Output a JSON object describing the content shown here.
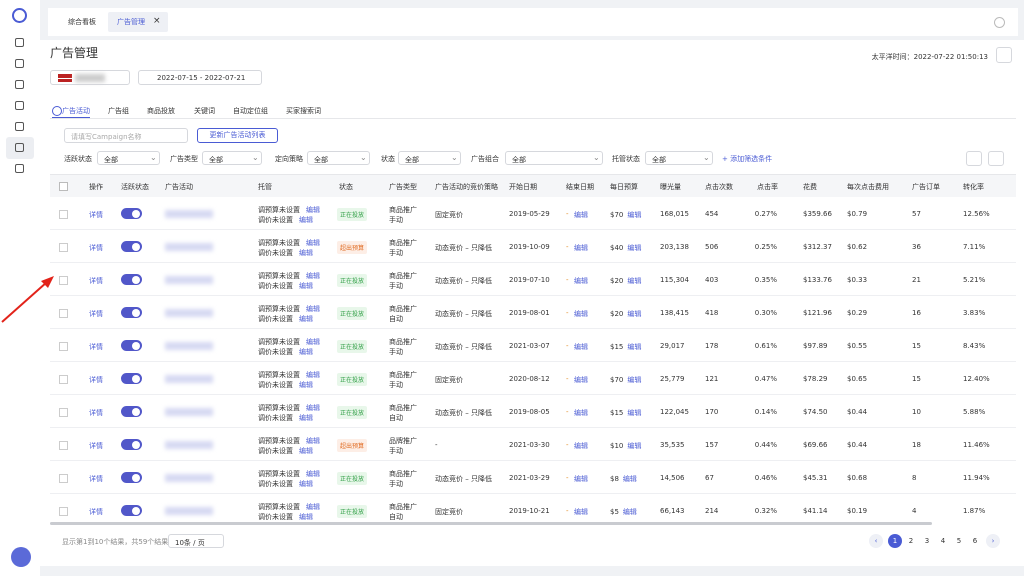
{
  "top_tabs": [
    "综合看板",
    "广告管理"
  ],
  "page": {
    "title": "广告管理",
    "time_label": "太平洋时间：2022-07-22 01:50:13",
    "date_range": "2022-07-15 - 2022-07-21"
  },
  "sub_tabs": [
    "广告活动",
    "广告组",
    "商品投放",
    "关键词",
    "自动定位组",
    "买家搜索词"
  ],
  "search": {
    "placeholder": "请填写Campaign名称",
    "button": "更新广告活动列表"
  },
  "filters": [
    {
      "label": "活跃状态",
      "value": "全部"
    },
    {
      "label": "广告类型",
      "value": "全部"
    },
    {
      "label": "定向策略",
      "value": "全部"
    },
    {
      "label": "状态",
      "value": "全部"
    },
    {
      "label": "广告组合",
      "value": "全部"
    },
    {
      "label": "托管状态",
      "value": "全部"
    }
  ],
  "add_filter": "添加筛选条件",
  "table": {
    "headers": [
      "操作",
      "活跃状态",
      "广告活动",
      "托管",
      "状态",
      "广告类型",
      "广告活动的竞价策略",
      "开始日期",
      "结束日期",
      "每日预算",
      "曝光量",
      "点击次数",
      "点击率",
      "花费",
      "每次点击费用",
      "广告订单",
      "转化率"
    ],
    "details": "详情",
    "edit": "编辑",
    "budget_unset": "调预算未设置",
    "bid_unset": "调价未设置",
    "rows": [
      {
        "status": "正在投放",
        "ad_type": [
          "商品推广",
          "手动"
        ],
        "bid_strategy": "固定竞价",
        "start": "2019-05-29",
        "end": "-",
        "budget": "$70",
        "impressions": "168,015",
        "clicks": "454",
        "ctr": "0.27%",
        "spend": "$359.66",
        "cpc": "$0.79",
        "orders": "57",
        "cvr": "12.56%"
      },
      {
        "status": "超出预算",
        "ad_type": [
          "商品推广",
          "手动"
        ],
        "bid_strategy": "动态竞价 – 只降低",
        "start": "2019-10-09",
        "end": "-",
        "budget": "$40",
        "impressions": "203,138",
        "clicks": "506",
        "ctr": "0.25%",
        "spend": "$312.37",
        "cpc": "$0.62",
        "orders": "36",
        "cvr": "7.11%"
      },
      {
        "status": "正在投放",
        "ad_type": [
          "商品推广",
          "手动"
        ],
        "bid_strategy": "动态竞价 – 只降低",
        "start": "2019-07-10",
        "end": "-",
        "budget": "$20",
        "impressions": "115,304",
        "clicks": "403",
        "ctr": "0.35%",
        "spend": "$133.76",
        "cpc": "$0.33",
        "orders": "21",
        "cvr": "5.21%"
      },
      {
        "status": "正在投放",
        "ad_type": [
          "商品推广",
          "自动"
        ],
        "bid_strategy": "动态竞价 – 只降低",
        "start": "2019-08-01",
        "end": "-",
        "budget": "$20",
        "impressions": "138,415",
        "clicks": "418",
        "ctr": "0.30%",
        "spend": "$121.96",
        "cpc": "$0.29",
        "orders": "16",
        "cvr": "3.83%"
      },
      {
        "status": "正在投放",
        "ad_type": [
          "商品推广",
          "手动"
        ],
        "bid_strategy": "动态竞价 – 只降低",
        "start": "2021-03-07",
        "end": "-",
        "budget": "$15",
        "impressions": "29,017",
        "clicks": "178",
        "ctr": "0.61%",
        "spend": "$97.89",
        "cpc": "$0.55",
        "orders": "15",
        "cvr": "8.43%"
      },
      {
        "status": "正在投放",
        "ad_type": [
          "商品推广",
          "手动"
        ],
        "bid_strategy": "固定竞价",
        "start": "2020-08-12",
        "end": "-",
        "budget": "$70",
        "impressions": "25,779",
        "clicks": "121",
        "ctr": "0.47%",
        "spend": "$78.29",
        "cpc": "$0.65",
        "orders": "15",
        "cvr": "12.40%"
      },
      {
        "status": "正在投放",
        "ad_type": [
          "商品推广",
          "自动"
        ],
        "bid_strategy": "动态竞价 – 只降低",
        "start": "2019-08-05",
        "end": "-",
        "budget": "$15",
        "impressions": "122,045",
        "clicks": "170",
        "ctr": "0.14%",
        "spend": "$74.50",
        "cpc": "$0.44",
        "orders": "10",
        "cvr": "5.88%"
      },
      {
        "status": "超出预算",
        "ad_type": [
          "品牌推广",
          "手动"
        ],
        "bid_strategy": "-",
        "start": "2021-03-30",
        "end": "-",
        "budget": "$10",
        "impressions": "35,535",
        "clicks": "157",
        "ctr": "0.44%",
        "spend": "$69.66",
        "cpc": "$0.44",
        "orders": "18",
        "cvr": "11.46%"
      },
      {
        "status": "正在投放",
        "ad_type": [
          "商品推广",
          "手动"
        ],
        "bid_strategy": "动态竞价 – 只降低",
        "start": "2021-03-29",
        "end": "-",
        "budget": "$8",
        "impressions": "14,506",
        "clicks": "67",
        "ctr": "0.46%",
        "spend": "$45.31",
        "cpc": "$0.68",
        "orders": "8",
        "cvr": "11.94%"
      },
      {
        "status": "正在投放",
        "ad_type": [
          "商品推广",
          "自动"
        ],
        "bid_strategy": "固定竞价",
        "start": "2019-10-21",
        "end": "-",
        "budget": "$5",
        "impressions": "66,143",
        "clicks": "214",
        "ctr": "0.32%",
        "spend": "$41.14",
        "cpc": "$0.19",
        "orders": "4",
        "cvr": "1.87%"
      }
    ]
  },
  "footer": {
    "summary": "显示第1到10个结果，共59个结果",
    "page_size": "10条 / 页",
    "pages": [
      1,
      2,
      3,
      4,
      5,
      6
    ]
  }
}
